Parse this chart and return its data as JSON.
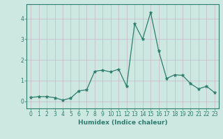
{
  "x": [
    0,
    1,
    2,
    3,
    4,
    5,
    6,
    7,
    8,
    9,
    10,
    11,
    12,
    13,
    14,
    15,
    16,
    17,
    18,
    19,
    20,
    21,
    22,
    23
  ],
  "y": [
    0.18,
    0.22,
    0.22,
    0.17,
    0.05,
    0.15,
    0.5,
    0.55,
    1.45,
    1.5,
    1.42,
    1.55,
    0.72,
    3.75,
    3.0,
    4.3,
    2.45,
    1.1,
    1.28,
    1.25,
    0.85,
    0.6,
    0.72,
    0.42
  ],
  "xlabel": "Humidex (Indice chaleur)",
  "xlim": [
    -0.5,
    23.5
  ],
  "ylim": [
    -0.35,
    4.7
  ],
  "yticks": [
    0,
    1,
    2,
    3,
    4
  ],
  "xticks": [
    0,
    1,
    2,
    3,
    4,
    5,
    6,
    7,
    8,
    9,
    10,
    11,
    12,
    13,
    14,
    15,
    16,
    17,
    18,
    19,
    20,
    21,
    22,
    23
  ],
  "line_color": "#2e7d6e",
  "marker": "*",
  "marker_size": 3.5,
  "bg_color": "#cce8e0",
  "grid_color": "#b8d8d0",
  "tick_label_fontsize": 5.5,
  "xlabel_fontsize": 6.5
}
